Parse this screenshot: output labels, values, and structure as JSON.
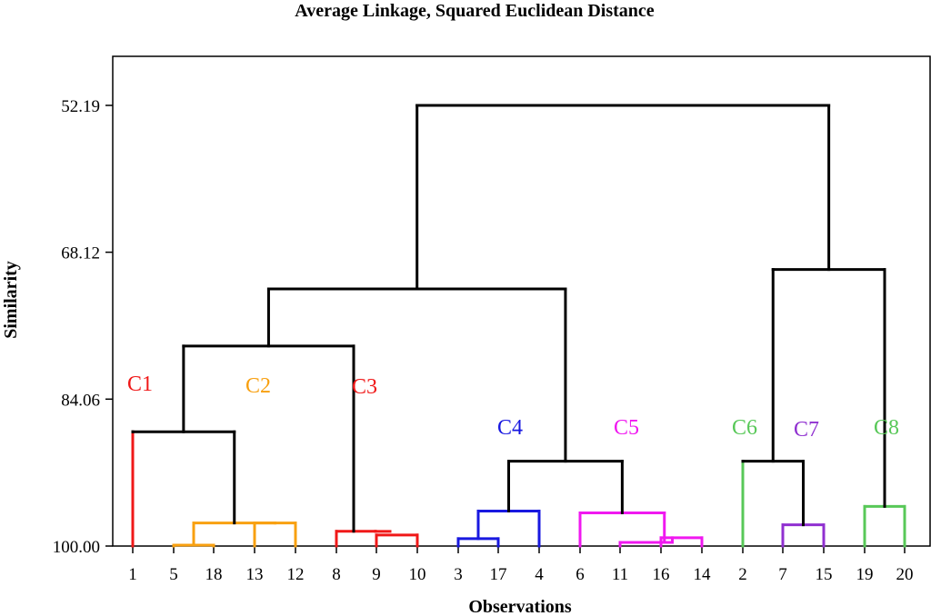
{
  "chart_data": {
    "type": "dendrogram",
    "title": "Average Linkage, Squared Euclidean Distance",
    "xlabel": "Observations",
    "ylabel": "Similarity",
    "y_ticks": [
      "52.19",
      "68.12",
      "84.06",
      "100.00"
    ],
    "y_tick_values": [
      52.19,
      68.12,
      84.06,
      100.0
    ],
    "ylim": [
      47.8,
      100.0
    ],
    "y_inverted": true,
    "grid": false,
    "leaf_order": [
      "1",
      "5",
      "18",
      "13",
      "12",
      "8",
      "9",
      "10",
      "3",
      "17",
      "4",
      "6",
      "11",
      "16",
      "14",
      "2",
      "7",
      "15",
      "19",
      "20"
    ],
    "clusters": [
      {
        "label": "C1",
        "color": "#f01818",
        "leaves": [
          "1"
        ]
      },
      {
        "label": "C2",
        "color": "#f8a010",
        "leaves": [
          "5",
          "18",
          "13",
          "12"
        ]
      },
      {
        "label": "C3",
        "color": "#f01818",
        "leaves": [
          "8",
          "9",
          "10"
        ]
      },
      {
        "label": "C4",
        "color": "#1818e0",
        "leaves": [
          "3",
          "17",
          "4"
        ]
      },
      {
        "label": "C5",
        "color": "#f018f0",
        "leaves": [
          "6",
          "11",
          "16",
          "14"
        ]
      },
      {
        "label": "C6",
        "color": "#58c858",
        "leaves": [
          "2"
        ]
      },
      {
        "label": "C7",
        "color": "#9030d0",
        "leaves": [
          "7",
          "15"
        ]
      },
      {
        "label": "C8",
        "color": "#58c858",
        "leaves": [
          "19",
          "20"
        ]
      }
    ],
    "merges": [
      {
        "left": "5",
        "right": "18",
        "similarity": 99.9,
        "color": "#f8a010"
      },
      {
        "left": "9",
        "right": "9b",
        "similarity": 98.6,
        "color": "#f01818"
      },
      {
        "left": "16",
        "right": "14",
        "similarity": 99.1,
        "color": "#f018f0"
      },
      {
        "left": "11",
        "right": "16-14",
        "similarity": 99.6,
        "color": "#f018f0"
      },
      {
        "left": "3",
        "right": "17",
        "similarity": 99.2,
        "color": "#1818e0"
      },
      {
        "left": "7",
        "right": "15",
        "similarity": 97.7,
        "color": "#9030d0"
      },
      {
        "left": "9",
        "right": "10",
        "similarity": 98.8,
        "color": "#f01818"
      },
      {
        "left": "8",
        "right": "9-10",
        "similarity": 98.4,
        "color": "#f01818"
      },
      {
        "left": "13",
        "right": "12",
        "similarity": 97.5,
        "color": "#f8a010"
      },
      {
        "left": "5-18",
        "right": "13-12",
        "similarity": 97.5,
        "color": "#f8a010"
      },
      {
        "left": "19",
        "right": "20",
        "similarity": 95.7,
        "color": "#58c858"
      },
      {
        "left": "6",
        "right": "11-16-14",
        "similarity": 96.4,
        "color": "#f018f0"
      },
      {
        "left": "3-17",
        "right": "4",
        "similarity": 96.2,
        "color": "#1818e0"
      },
      {
        "left": "C4",
        "right": "C5",
        "similarity": 90.8,
        "color": "#000000"
      },
      {
        "left": "2",
        "right": "C7",
        "similarity": 90.8,
        "color": "#000000"
      },
      {
        "left": "1",
        "right": "C2",
        "similarity": 87.6,
        "color": "#000000"
      },
      {
        "left": "C1-C2",
        "right": "C3",
        "similarity": 78.3,
        "color": "#000000"
      },
      {
        "left": "C1-C3",
        "right": "C4-C5",
        "similarity": 72.1,
        "color": "#000000"
      },
      {
        "left": "C6-C7",
        "right": "C8",
        "similarity": 70.0,
        "color": "#000000"
      },
      {
        "left": "C1-C5",
        "right": "C6-C8",
        "similarity": 52.19,
        "color": "#000000"
      }
    ]
  }
}
